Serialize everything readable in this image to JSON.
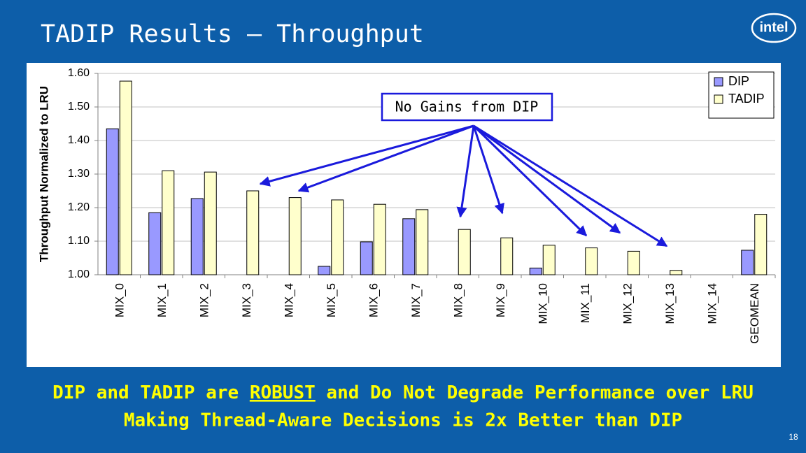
{
  "title": "TADIP Results – Throughput",
  "logo": "intel",
  "page_number": "18",
  "chart_data": {
    "type": "bar",
    "y_label": "Throughput Normalized to LRU",
    "annotation": "No Gains from DIP",
    "categories": [
      "MIX_0",
      "MIX_1",
      "MIX_2",
      "MIX_3",
      "MIX_4",
      "MIX_5",
      "MIX_6",
      "MIX_7",
      "MIX_8",
      "MIX_9",
      "MIX_10",
      "MIX_11",
      "MIX_12",
      "MIX_13",
      "MIX_14",
      "GEOMEAN"
    ],
    "series": [
      {
        "name": "DIP",
        "color": "#9999ff",
        "values": [
          1.435,
          1.185,
          1.227,
          1.0,
          1.0,
          1.025,
          1.098,
          1.167,
          1.0,
          1.0,
          1.02,
          1.0,
          1.0,
          1.0,
          1.0,
          1.073
        ]
      },
      {
        "name": "TADIP",
        "color": "#ffffcc",
        "values": [
          1.577,
          1.31,
          1.306,
          1.25,
          1.23,
          1.223,
          1.21,
          1.194,
          1.135,
          1.11,
          1.088,
          1.08,
          1.07,
          1.013,
          1.0,
          1.18
        ]
      }
    ],
    "ylim": [
      1.0,
      1.6
    ],
    "yticks": [
      {
        "value": 1.0,
        "label": "1.00"
      },
      {
        "value": 1.1,
        "label": "1.10"
      },
      {
        "value": 1.2,
        "label": "1.20"
      },
      {
        "value": 1.3,
        "label": "1.30"
      },
      {
        "value": 1.4,
        "label": "1.40"
      },
      {
        "value": 1.5,
        "label": "1.50"
      },
      {
        "value": 1.6,
        "label": "1.60"
      }
    ],
    "grid": true,
    "legend": "top-right"
  },
  "footer": {
    "line1": [
      "DIP and TADIP are ",
      "ROBUST",
      " and Do Not Degrade Performance over LRU"
    ],
    "line2": "Making Thread-Aware Decisions is 2x Better than DIP"
  }
}
